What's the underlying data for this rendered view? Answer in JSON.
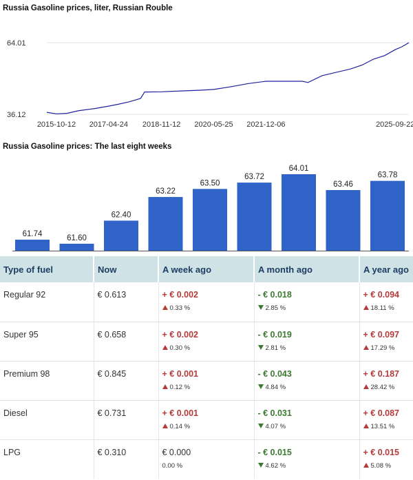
{
  "titles": {
    "line": "Russia Gasoline prices, liter, Russian Rouble",
    "bars": "Russia Gasoline prices: The last eight weeks"
  },
  "colors": {
    "line": "#1f1f9e",
    "bar": "#2f63c8",
    "header_bg": "#cfe2e6",
    "up": "#b53a3a",
    "down": "#3c7a32"
  },
  "chart_data": [
    {
      "type": "line",
      "title": "Russia Gasoline prices, liter, Russian Rouble",
      "y_ticks": [
        "64.01",
        "36.12"
      ],
      "ylim": [
        36.12,
        64.01
      ],
      "x_ticks": [
        "2015-10-12",
        "2017-04-24",
        "2018-11-12",
        "2020-05-25",
        "2021-12-06",
        "2025-09-22"
      ],
      "grid": true,
      "series": [
        {
          "points": [
            [
              "2015-07-01",
              36.9
            ],
            [
              "2015-10-12",
              36.3
            ],
            [
              "2016-02-01",
              36.5
            ],
            [
              "2016-06-01",
              37.5
            ],
            [
              "2016-12-01",
              38.4
            ],
            [
              "2017-04-24",
              39.3
            ],
            [
              "2017-08-01",
              40.0
            ],
            [
              "2017-12-01",
              41.0
            ],
            [
              "2018-04-01",
              42.3
            ],
            [
              "2018-05-15",
              44.8
            ],
            [
              "2018-11-12",
              44.9
            ],
            [
              "2019-06-01",
              45.2
            ],
            [
              "2020-01-01",
              45.5
            ],
            [
              "2020-05-25",
              45.8
            ],
            [
              "2020-12-01",
              46.9
            ],
            [
              "2021-06-01",
              48.1
            ],
            [
              "2021-12-06",
              49.0
            ],
            [
              "2022-06-01",
              49.0
            ],
            [
              "2023-01-01",
              49.0
            ],
            [
              "2023-03-01",
              48.5
            ],
            [
              "2023-08-01",
              51.2
            ],
            [
              "2024-01-01",
              52.5
            ],
            [
              "2024-06-01",
              53.8
            ],
            [
              "2024-10-01",
              55.3
            ],
            [
              "2025-02-01",
              57.6
            ],
            [
              "2025-06-01",
              59.0
            ],
            [
              "2025-09-22",
              61.3
            ],
            [
              "2025-12-01",
              62.4
            ],
            [
              "2026-02-15",
              64.01
            ]
          ]
        }
      ]
    },
    {
      "type": "bar",
      "title": "Russia Gasoline prices: The last eight weeks",
      "values": [
        61.74,
        61.6,
        62.4,
        63.22,
        63.5,
        63.72,
        64.01,
        63.46,
        63.78
      ],
      "labels": [
        "61.74",
        "61.60",
        "62.40",
        "63.22",
        "63.50",
        "63.72",
        "64.01",
        "63.46",
        "63.78"
      ],
      "ylim": [
        61.55,
        64.01
      ]
    }
  ],
  "table": {
    "headers": [
      "Type of fuel",
      "Now",
      "A week ago",
      "A month ago",
      "A year ago"
    ],
    "rows": [
      {
        "fuel": "Regular 92",
        "now": "€ 0.613",
        "week": {
          "amt": "+ € 0.002",
          "pct": "0.33 %",
          "dir": "up"
        },
        "month": {
          "amt": "- € 0.018",
          "pct": "2.85 %",
          "dir": "down"
        },
        "year": {
          "amt": "+ € 0.094",
          "pct": "18.11 %",
          "dir": "up"
        }
      },
      {
        "fuel": "Super 95",
        "now": "€ 0.658",
        "week": {
          "amt": "+ € 0.002",
          "pct": "0.30 %",
          "dir": "up"
        },
        "month": {
          "amt": "- € 0.019",
          "pct": "2.81 %",
          "dir": "down"
        },
        "year": {
          "amt": "+ € 0.097",
          "pct": "17.29 %",
          "dir": "up"
        }
      },
      {
        "fuel": "Premium 98",
        "now": "€ 0.845",
        "week": {
          "amt": "+ € 0.001",
          "pct": "0.12 %",
          "dir": "up"
        },
        "month": {
          "amt": "- € 0.043",
          "pct": "4.84 %",
          "dir": "down"
        },
        "year": {
          "amt": "+ € 0.187",
          "pct": "28.42 %",
          "dir": "up"
        }
      },
      {
        "fuel": "Diesel",
        "now": "€ 0.731",
        "week": {
          "amt": "+ € 0.001",
          "pct": "0.14 %",
          "dir": "up"
        },
        "month": {
          "amt": "- € 0.031",
          "pct": "4.07 %",
          "dir": "down"
        },
        "year": {
          "amt": "+ € 0.087",
          "pct": "13.51 %",
          "dir": "up"
        }
      },
      {
        "fuel": "LPG",
        "now": "€ 0.310",
        "week": {
          "amt": "€ 0.000",
          "pct": "0.00 %",
          "dir": "flat"
        },
        "month": {
          "amt": "- € 0.015",
          "pct": "4.62 %",
          "dir": "down"
        },
        "year": {
          "amt": "+ € 0.015",
          "pct": "5.08 %",
          "dir": "up"
        }
      }
    ]
  }
}
